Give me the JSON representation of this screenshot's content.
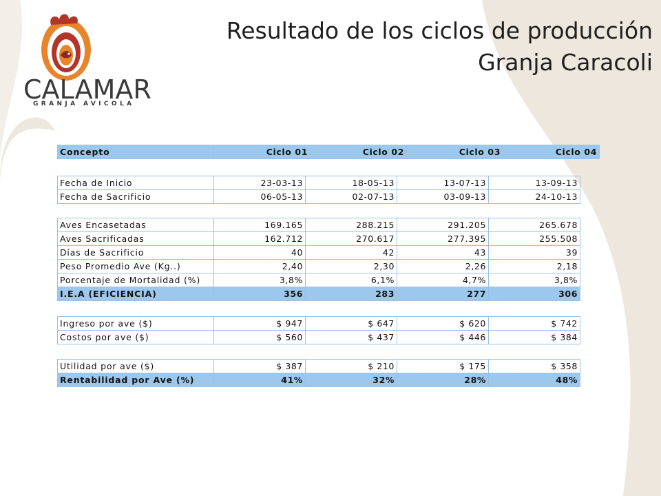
{
  "title": {
    "line1": "Resultado de los ciclos de producción",
    "line2": "Granja Caracoli"
  },
  "logo": {
    "brand": "CALAMAR",
    "subtitle": "GRANJA AVICOLA",
    "icon": "rooster-spiral-icon"
  },
  "colors": {
    "header_fill": "#9dc8ee",
    "cell_border": "#9cc0e6",
    "logo_orange": "#e8852a",
    "logo_red": "#b2352a"
  },
  "table": {
    "header": [
      "Concepto",
      "Ciclo 01",
      "Ciclo 02",
      "Ciclo 03",
      "Ciclo 04"
    ],
    "dates": [
      {
        "label": "Fecha de Inicio",
        "values": [
          "23-03-13",
          "18-05-13",
          "13-07-13",
          "13-09-13"
        ]
      },
      {
        "label": "Fecha de Sacrificio",
        "values": [
          "06-05-13",
          "02-07-13",
          "03-09-13",
          "24-10-13"
        ]
      }
    ],
    "production": [
      {
        "label": "Aves Encasetadas",
        "values": [
          "169.165",
          "288.215",
          "291.205",
          "265.678"
        ]
      },
      {
        "label": "Aves Sacrificadas",
        "values": [
          "162.712",
          "270.617",
          "277.395",
          "255.508"
        ]
      },
      {
        "label": "Días de Sacrificio",
        "values": [
          "40",
          "42",
          "43",
          "39"
        ]
      },
      {
        "label": "Peso Promedio Ave (Kg..)",
        "values": [
          "2,40",
          "2,30",
          "2,26",
          "2,18"
        ]
      },
      {
        "label": "Porcentaje de Mortalidad (%)",
        "values": [
          "3,8%",
          "6,1%",
          "4,7%",
          "3,8%"
        ]
      }
    ],
    "iea": {
      "label": "I.E.A (EFICIENCIA)",
      "values": [
        "356",
        "283",
        "277",
        "306"
      ]
    },
    "costs": [
      {
        "label": "Ingreso por ave ($)",
        "values": [
          "$ 947",
          "$ 647",
          "$ 620",
          "$ 742"
        ]
      },
      {
        "label": "Costos por ave ($)",
        "values": [
          "$ 560",
          "$ 437",
          "$ 446",
          "$ 384"
        ]
      }
    ],
    "utility": {
      "label": "Utilidad por ave ($)",
      "values": [
        "$ 387",
        "$ 210",
        "$ 175",
        "$ 358"
      ]
    },
    "rentabilidad": {
      "label": "Rentabilidad por Ave (%)",
      "values": [
        "41%",
        "32%",
        "28%",
        "48%"
      ]
    }
  }
}
